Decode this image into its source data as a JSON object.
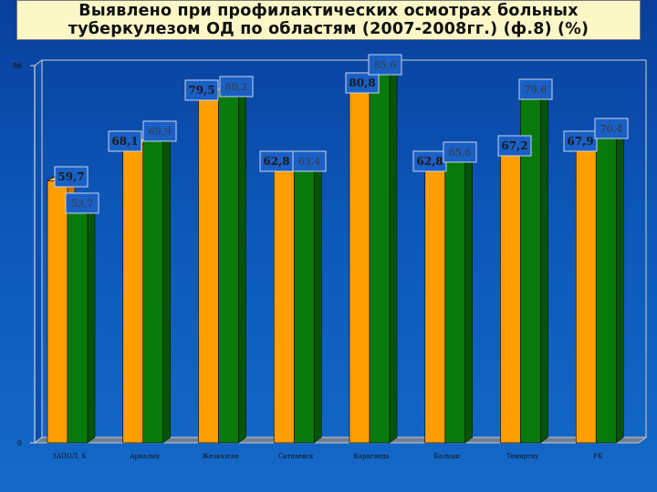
{
  "title": {
    "line1": "Выявлено при профилактических осмотрах больных",
    "line2": "туберкулезом ОД по областям (2007-2008гг.) (ф.8) (%)"
  },
  "chart_data": {
    "type": "bar",
    "ylim": [
      0,
      86
    ],
    "yticks": [
      "0",
      "86"
    ],
    "categories": [
      "ЗАПОЛ. К",
      "Аркалык",
      "Жезказган",
      "Сатпаевск",
      "Караганда",
      "Балхаш",
      "Темиртау",
      "РК"
    ],
    "series": [
      {
        "values": [
          59.7,
          68.1,
          79.5,
          62.8,
          80.8,
          62.8,
          67.2,
          67.9
        ],
        "labels": [
          "59,7",
          "68,1",
          "79,5",
          "62,8",
          "80,8",
          "62,8",
          "67,2",
          "67,9"
        ],
        "color": "#ff9e00"
      },
      {
        "values": [
          53.7,
          69.9,
          80.2,
          63.4,
          85.6,
          65.6,
          79.6,
          70.4
        ],
        "labels": [
          "53,7",
          "69,9",
          "80,2",
          "63,4",
          "85,6",
          "65,6",
          "79,6",
          "70,4"
        ],
        "color": "#087a0c"
      }
    ],
    "grid": false,
    "legend": "none"
  }
}
